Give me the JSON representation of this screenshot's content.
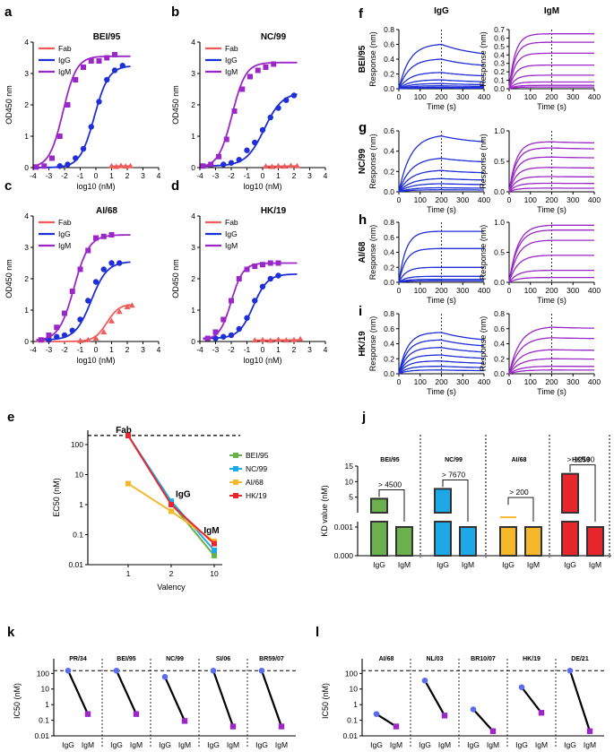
{
  "colors": {
    "fab": "#f25a5a",
    "igg": "#1f2fd8",
    "igm": "#9b27c8",
    "bei": "#6ab04c",
    "nc": "#1ea8e8",
    "ai": "#f5b82a",
    "hk": "#e8262e",
    "dark": "#333333"
  },
  "panel_labels": {
    "a": "a",
    "b": "b",
    "c": "c",
    "d": "d",
    "e": "e",
    "f": "f",
    "g": "g",
    "h": "h",
    "i": "i",
    "j": "j",
    "k": "k",
    "l": "l"
  },
  "common": {
    "od_ylabel": "OD450 nm",
    "od_xlabel": "log10 (nM)",
    "response_ylabel": "Response (nm)",
    "time_xlabel": "Time (s)",
    "legend_fab": "Fab",
    "legend_igg": "IgG",
    "legend_igm": "IgM",
    "col_igg": "IgG",
    "col_igm": "IgM",
    "ec50_ylabel": "EC50 (nM)",
    "valency_label": "Valency",
    "kd_ylabel": "KD value (nM)",
    "ic50_ylabel": "IC50 (nM)"
  },
  "chart_data": [
    {
      "id": "a",
      "type": "line",
      "title": "BEI/95",
      "xlabel": "log10 (nM)",
      "ylabel": "OD450 nm",
      "xlim": [
        -4,
        4
      ],
      "ylim": [
        0,
        4
      ],
      "xticks": [
        -4,
        -3,
        -2,
        -1,
        0,
        1,
        2,
        3,
        4
      ],
      "yticks": [
        0,
        1,
        2,
        3,
        4
      ],
      "legend": [
        "Fab",
        "IgG",
        "IgM"
      ],
      "series": [
        {
          "name": "Fab",
          "x": [
            1.0,
            1.3,
            1.6,
            1.9,
            2.2
          ],
          "y": [
            0.05,
            0.03,
            0.06,
            0.04,
            0.05
          ]
        },
        {
          "name": "IgG",
          "x": [
            -2.3,
            -1.8,
            -1.3,
            -0.8,
            -0.3,
            0.2,
            0.7,
            1.2,
            1.7
          ],
          "y": [
            0.05,
            0.1,
            0.3,
            0.6,
            1.3,
            2.1,
            2.8,
            3.1,
            3.25
          ]
        },
        {
          "name": "IgM",
          "x": [
            -3.8,
            -3.3,
            -2.8,
            -2.3,
            -1.8,
            -1.3,
            -0.8,
            -0.3,
            0.2,
            0.7,
            1.2
          ],
          "y": [
            0.02,
            0.05,
            0.3,
            1.0,
            2.0,
            2.8,
            3.2,
            3.4,
            3.4,
            3.5,
            3.6
          ]
        }
      ]
    },
    {
      "id": "b",
      "type": "line",
      "title": "NC/99",
      "xlabel": "log10 (nM)",
      "ylabel": "OD450 nm",
      "xlim": [
        -4,
        4
      ],
      "ylim": [
        0,
        4
      ],
      "xticks": [
        -4,
        -3,
        -2,
        -1,
        0,
        1,
        2,
        3,
        4
      ],
      "yticks": [
        0,
        1,
        2,
        3,
        4
      ],
      "legend": [
        "Fab",
        "IgG",
        "IgM"
      ],
      "series": [
        {
          "name": "Fab",
          "x": [
            0.2,
            0.6,
            1.0,
            1.4,
            1.8,
            2.2
          ],
          "y": [
            0.04,
            0.03,
            0.05,
            0.04,
            0.06,
            0.05
          ]
        },
        {
          "name": "IgG",
          "x": [
            -2.5,
            -2.0,
            -1.5,
            -1.0,
            -0.5,
            0.0,
            0.5,
            1.0,
            1.5,
            2.0
          ],
          "y": [
            0.1,
            0.15,
            0.25,
            0.55,
            0.8,
            1.2,
            1.6,
            1.9,
            2.15,
            2.3
          ]
        },
        {
          "name": "IgM",
          "x": [
            -3.8,
            -3.3,
            -2.8,
            -2.3,
            -1.8,
            -1.3,
            -0.8,
            -0.3,
            0.2,
            0.7
          ],
          "y": [
            0.05,
            0.1,
            0.35,
            0.9,
            1.8,
            2.5,
            2.9,
            3.1,
            3.2,
            3.3
          ]
        }
      ]
    },
    {
      "id": "c",
      "type": "line",
      "title": "AI/68",
      "xlabel": "log10 (nM)",
      "ylabel": "OD450 nm",
      "xlim": [
        -4,
        4
      ],
      "ylim": [
        0,
        4
      ],
      "xticks": [
        -4,
        -3,
        -2,
        -1,
        0,
        1,
        2,
        3,
        4
      ],
      "yticks": [
        0,
        1,
        2,
        3,
        4
      ],
      "legend": [
        "Fab",
        "IgG",
        "IgM"
      ],
      "series": [
        {
          "name": "Fab",
          "x": [
            -1.0,
            -0.5,
            0.0,
            0.5,
            1.0,
            1.5,
            2.0,
            2.3
          ],
          "y": [
            0.02,
            0.05,
            0.1,
            0.3,
            0.65,
            0.95,
            1.1,
            1.15
          ]
        },
        {
          "name": "IgG",
          "x": [
            -3.0,
            -2.5,
            -2.0,
            -1.5,
            -1.0,
            -0.5,
            0.0,
            0.5,
            1.0,
            1.5
          ],
          "y": [
            0.05,
            0.15,
            0.2,
            0.35,
            0.7,
            1.3,
            1.9,
            2.3,
            2.5,
            2.5
          ]
        },
        {
          "name": "IgM",
          "x": [
            -3.5,
            -3.0,
            -2.5,
            -2.0,
            -1.5,
            -1.0,
            -0.5,
            0.0,
            0.5,
            1.0
          ],
          "y": [
            0.05,
            0.2,
            0.45,
            0.9,
            1.6,
            2.3,
            2.9,
            3.3,
            3.35,
            3.4
          ]
        }
      ]
    },
    {
      "id": "d",
      "type": "line",
      "title": "HK/19",
      "xlabel": "log10 (nM)",
      "ylabel": "OD450 nm",
      "xlim": [
        -4,
        4
      ],
      "ylim": [
        0,
        4
      ],
      "xticks": [
        -4,
        -3,
        -2,
        -1,
        0,
        1,
        2,
        3,
        4
      ],
      "yticks": [
        0,
        1,
        2,
        3,
        4
      ],
      "legend": [
        "Fab",
        "IgG",
        "IgM"
      ],
      "series": [
        {
          "name": "Fab",
          "x": [
            -0.5,
            0.0,
            0.5,
            1.0,
            1.5,
            2.0,
            2.4
          ],
          "y": [
            0.04,
            0.05,
            0.03,
            0.06,
            0.04,
            0.05,
            0.08
          ]
        },
        {
          "name": "IgG",
          "x": [
            -3.0,
            -2.5,
            -2.0,
            -1.5,
            -1.0,
            -0.5,
            0.0,
            0.5,
            1.0
          ],
          "y": [
            0.1,
            0.15,
            0.2,
            0.4,
            0.75,
            1.3,
            1.75,
            2.0,
            2.1
          ]
        },
        {
          "name": "IgM",
          "x": [
            -3.5,
            -3.0,
            -2.5,
            -2.0,
            -1.5,
            -1.0,
            -0.5,
            0.0,
            0.5,
            1.0
          ],
          "y": [
            0.1,
            0.3,
            0.7,
            1.3,
            2.0,
            2.3,
            2.4,
            2.45,
            2.5,
            2.5
          ]
        }
      ]
    },
    {
      "id": "e",
      "type": "line",
      "xlabel": "Valency",
      "ylabel": "EC50 (nM)",
      "log_y": true,
      "ylim": [
        0.01,
        300
      ],
      "xticks": [
        "1",
        "2",
        "10"
      ],
      "yticks": [
        "0.01",
        "0.1",
        "1",
        "10",
        "100"
      ],
      "dashed_y": 200,
      "annotations": [
        "Fab",
        "IgG",
        "IgM"
      ],
      "series": [
        {
          "name": "BEI/95",
          "values": [
            200,
            1.1,
            0.02
          ]
        },
        {
          "name": "NC/99",
          "values": [
            200,
            1.3,
            0.03
          ]
        },
        {
          "name": "AI/68",
          "values": [
            5,
            0.6,
            0.06
          ]
        },
        {
          "name": "HK/19",
          "values": [
            200,
            1.0,
            0.05
          ]
        }
      ]
    },
    {
      "id": "f",
      "type": "line",
      "row_label": "BEI/95",
      "col_titles": [
        "IgG",
        "IgM"
      ],
      "xlabel": "Time (s)",
      "ylabel": "Response (nm)",
      "xlim": [
        0,
        400
      ],
      "xticks": [
        0,
        100,
        200,
        300,
        400
      ],
      "dissociation_start": 200,
      "panels": [
        {
          "name": "IgG",
          "ylim": [
            0,
            0.8
          ],
          "yticks": [
            "0.0",
            "0.2",
            "0.4",
            "0.6",
            "0.8"
          ],
          "assoc_levels": [
            0.6,
            0.4,
            0.22,
            0.12,
            0.07,
            0.04,
            0.02,
            0.01
          ],
          "dissoc_fraction": 0.7,
          "rate": 0.02
        },
        {
          "name": "IgM",
          "ylim": [
            0,
            0.7
          ],
          "yticks": [
            "0.0",
            "0.1",
            "0.2",
            "0.3",
            "0.4",
            "0.5",
            "0.6",
            "0.7"
          ],
          "assoc_levels": [
            0.65,
            0.55,
            0.42,
            0.28,
            0.16,
            0.08,
            0.04,
            0.02
          ],
          "dissoc_fraction": 1.0,
          "rate": 0.035
        }
      ]
    },
    {
      "id": "g",
      "type": "line",
      "row_label": "NC/99",
      "xlabel": "Time (s)",
      "ylabel": "Response (nm)",
      "xlim": [
        0,
        400
      ],
      "xticks": [
        0,
        100,
        200,
        300,
        400
      ],
      "dissociation_start": 200,
      "panels": [
        {
          "name": "IgG",
          "ylim": [
            0,
            0.6
          ],
          "yticks": [
            "0.0",
            "0.2",
            "0.4",
            "0.6"
          ],
          "assoc_levels": [
            0.55,
            0.33,
            0.21,
            0.13,
            0.08,
            0.04,
            0.02
          ],
          "dissoc_fraction": 0.85,
          "rate": 0.018
        },
        {
          "name": "IgM",
          "ylim": [
            0,
            1.0
          ],
          "yticks": [
            "0.0",
            "0.5",
            "1.0"
          ],
          "assoc_levels": [
            0.82,
            0.72,
            0.57,
            0.4,
            0.25,
            0.14,
            0.06
          ],
          "dissoc_fraction": 0.97,
          "rate": 0.03
        }
      ]
    },
    {
      "id": "h",
      "type": "line",
      "row_label": "AI/68",
      "xlabel": "Time (s)",
      "ylabel": "Response (nm)",
      "xlim": [
        0,
        400
      ],
      "xticks": [
        0,
        100,
        200,
        300,
        400
      ],
      "dissociation_start": 200,
      "panels": [
        {
          "name": "IgG",
          "ylim": [
            0,
            0.8
          ],
          "yticks": [
            "0.0",
            "0.2",
            "0.4",
            "0.6",
            "0.8"
          ],
          "assoc_levels": [
            0.68,
            0.45,
            0.2,
            0.08,
            0.04,
            0.02
          ],
          "dissoc_fraction": 1.0,
          "rate": 0.03
        },
        {
          "name": "IgM",
          "ylim": [
            0,
            1.0
          ],
          "yticks": [
            "0.0",
            "0.5",
            "1.0"
          ],
          "assoc_levels": [
            0.95,
            0.87,
            0.7,
            0.45,
            0.2,
            0.08
          ],
          "dissoc_fraction": 1.0,
          "rate": 0.025
        }
      ]
    },
    {
      "id": "i",
      "type": "line",
      "row_label": "HK/19",
      "xlabel": "Time (s)",
      "ylabel": "Response (nm)",
      "xlim": [
        0,
        400
      ],
      "xticks": [
        0,
        100,
        200,
        300,
        400
      ],
      "dissociation_start": 200,
      "panels": [
        {
          "name": "IgG",
          "ylim": [
            0,
            0.8
          ],
          "yticks": [
            "0.0",
            "0.2",
            "0.4",
            "0.6",
            "0.8"
          ],
          "assoc_levels": [
            0.55,
            0.45,
            0.35,
            0.25,
            0.17,
            0.1,
            0.05
          ],
          "dissoc_fraction": 0.75,
          "rate": 0.025
        },
        {
          "name": "IgM",
          "ylim": [
            0,
            0.8
          ],
          "yticks": [
            "0.0",
            "0.2",
            "0.4",
            "0.6",
            "0.8"
          ],
          "assoc_levels": [
            0.62,
            0.48,
            0.32,
            0.2,
            0.1,
            0.05
          ],
          "dissoc_fraction": 0.97,
          "rate": 0.02
        }
      ]
    },
    {
      "id": "j",
      "type": "bar",
      "ylabel": "KD value (nM)",
      "categories": [
        "IgG",
        "IgM"
      ],
      "yticks_top": [
        "5",
        "10",
        "15"
      ],
      "yticks_bottom": [
        "0.000",
        "0.001"
      ],
      "groups": [
        {
          "name": "BEI/95",
          "igg": 4.5,
          "igm": 0.001,
          "ratio": "> 4500"
        },
        {
          "name": "NC/99",
          "igg": 7.67,
          "igm": 0.001,
          "ratio": "> 7670"
        },
        {
          "name": "AI/68",
          "igg": 0.2,
          "igm": 0.001,
          "ratio": "> 200"
        },
        {
          "name": "HK/19",
          "igg": 12.5,
          "igm": 0.001,
          "ratio": "> 12500"
        }
      ]
    },
    {
      "id": "k",
      "type": "scatter",
      "ylabel": "IC50 (nM)",
      "log_y": true,
      "ylim": [
        0.01,
        300
      ],
      "yticks": [
        "0.01",
        "0.1",
        "1",
        "10",
        "100"
      ],
      "categories": [
        "IgG",
        "IgM"
      ],
      "dashed_y": 150,
      "groups": [
        {
          "name": "PR/34",
          "igg": 150,
          "igm": 0.25
        },
        {
          "name": "BEI/95",
          "igg": 150,
          "igm": 0.25
        },
        {
          "name": "NC/99",
          "igg": 60,
          "igm": 0.09
        },
        {
          "name": "SI/06",
          "igg": 150,
          "igm": 0.04
        },
        {
          "name": "BR59/07",
          "igg": 150,
          "igm": 0.04
        }
      ]
    },
    {
      "id": "l",
      "type": "scatter",
      "ylabel": "IC50 (nM)",
      "log_y": true,
      "ylim": [
        0.01,
        300
      ],
      "yticks": [
        "0.01",
        "0.1",
        "1",
        "10",
        "100"
      ],
      "categories": [
        "IgG",
        "IgM"
      ],
      "dashed_y": 150,
      "groups": [
        {
          "name": "AI/68",
          "igg": 0.25,
          "igm": 0.04
        },
        {
          "name": "NL/03",
          "igg": 35,
          "igm": 0.2
        },
        {
          "name": "BR10/07",
          "igg": 0.5,
          "igm": 0.02
        },
        {
          "name": "HK/19",
          "igg": 13,
          "igm": 0.3
        },
        {
          "name": "DE/21",
          "igg": 150,
          "igm": 0.02
        }
      ]
    }
  ]
}
